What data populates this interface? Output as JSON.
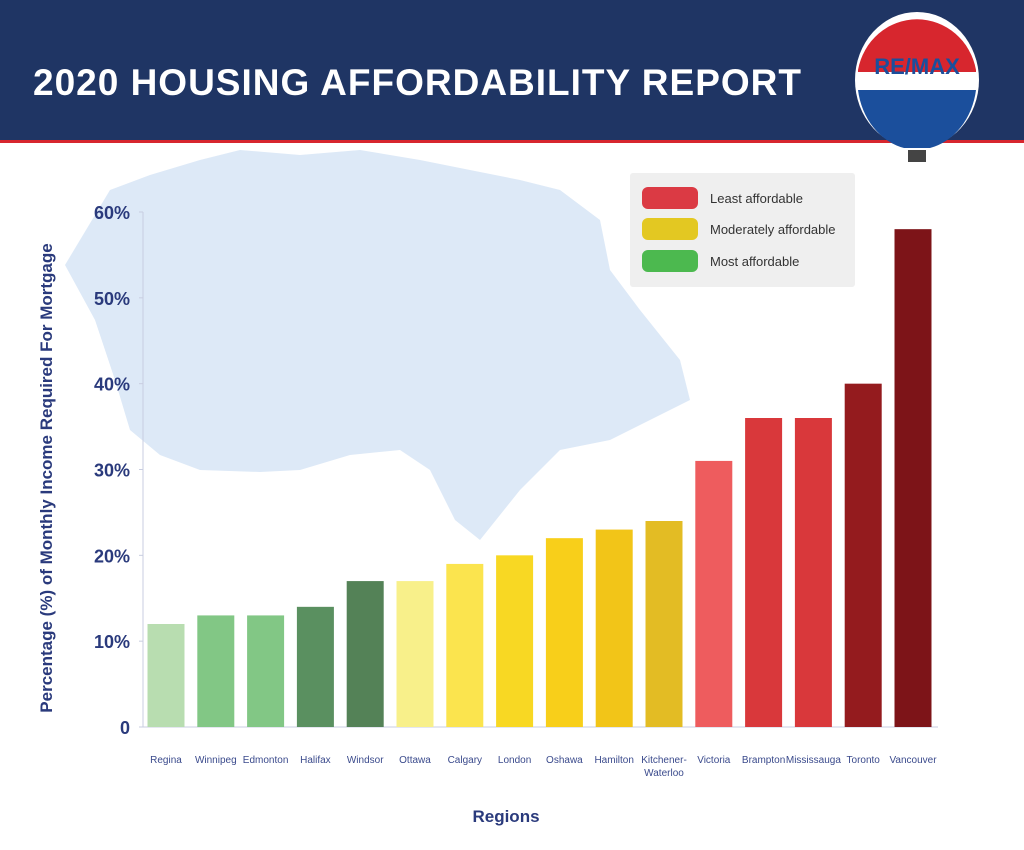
{
  "header": {
    "title": "2020 HOUSING AFFORDABILITY REPORT",
    "logo_text": "RE/MAX"
  },
  "legend": [
    {
      "label": "Least affordable",
      "color": "#db3a44"
    },
    {
      "label": "Moderately affordable",
      "color": "#e3c822"
    },
    {
      "label": "Most affordable",
      "color": "#4cb94f"
    }
  ],
  "chart_data": {
    "type": "bar",
    "title": "2020 HOUSING AFFORDABILITY REPORT",
    "xlabel": "Regions",
    "ylabel": "Percentage (%) of Monthly Income Required For Mortgage",
    "ylim": [
      0,
      60
    ],
    "yticks": [
      "0",
      "10%",
      "20%",
      "30%",
      "40%",
      "50%",
      "60%"
    ],
    "categories": [
      "Regina",
      "Winnipeg",
      "Edmonton",
      "Halifax",
      "Windsor",
      "Ottawa",
      "Calgary",
      "London",
      "Oshawa",
      "Hamilton",
      "Kitchener-\nWaterloo",
      "Victoria",
      "Brampton",
      "Mississauga",
      "Toronto",
      "Vancouver"
    ],
    "values": [
      12,
      13,
      13,
      14,
      17,
      17,
      19,
      20,
      22,
      23,
      24,
      31,
      36,
      36,
      40,
      58
    ],
    "colors": [
      "#b8ddb0",
      "#82c785",
      "#82c785",
      "#5a9060",
      "#548257",
      "#f8f08a",
      "#fbe44e",
      "#f8d823",
      "#f8cf1a",
      "#f2c518",
      "#e3bc24",
      "#ee5c5e",
      "#d9383b",
      "#d9383b",
      "#941b1e",
      "#7d1418"
    ],
    "legend_position": "top-right",
    "grid": false
  }
}
